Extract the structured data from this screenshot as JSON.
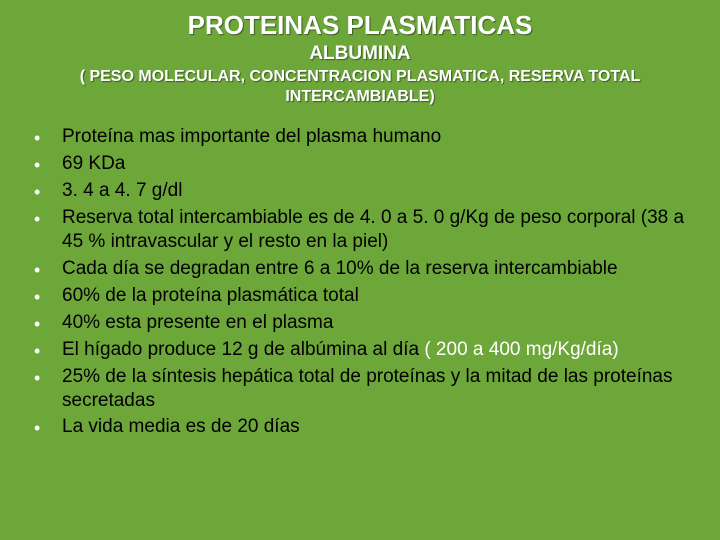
{
  "background_color": "#6da639",
  "text_color": "#000000",
  "heading_color": "#ffffff",
  "bullet_marker_color": "#ffffff",
  "title_fontsize": 26,
  "subtitle_fontsize": 19,
  "subheading_fontsize": 16,
  "body_fontsize": 19,
  "title": "PROTEINAS PLASMATICAS",
  "subtitle": "ALBUMINA",
  "subheading": "( PESO MOLECULAR, CONCENTRACION PLASMATICA, RESERVA TOTAL INTERCAMBIABLE)",
  "bullets": [
    {
      "text": "Proteína mas importante del plasma humano"
    },
    {
      "text": "69 KDa"
    },
    {
      "text": "3. 4 a 4. 7 g/dl"
    },
    {
      "text": "Reserva total intercambiable es de 4. 0 a 5. 0 g/Kg de peso corporal (38 a 45 % intravascular y el resto en la piel)"
    },
    {
      "text": "Cada día se degradan entre 6 a 10% de la reserva intercambiable"
    },
    {
      "text": "60% de la proteína plasmática total"
    },
    {
      "text": "40% esta presente en el plasma"
    },
    {
      "text_parts": [
        {
          "text": "El hígado produce 12 g de albúmina al día ",
          "color": "#000000"
        },
        {
          "text": "( 200 a 400 mg/Kg/día)",
          "color": "#ffffff"
        }
      ]
    },
    {
      "text": "25% de la síntesis hepática total de proteínas y la mitad de las proteínas secretadas"
    },
    {
      "text": "La vida media es de 20 días"
    }
  ]
}
